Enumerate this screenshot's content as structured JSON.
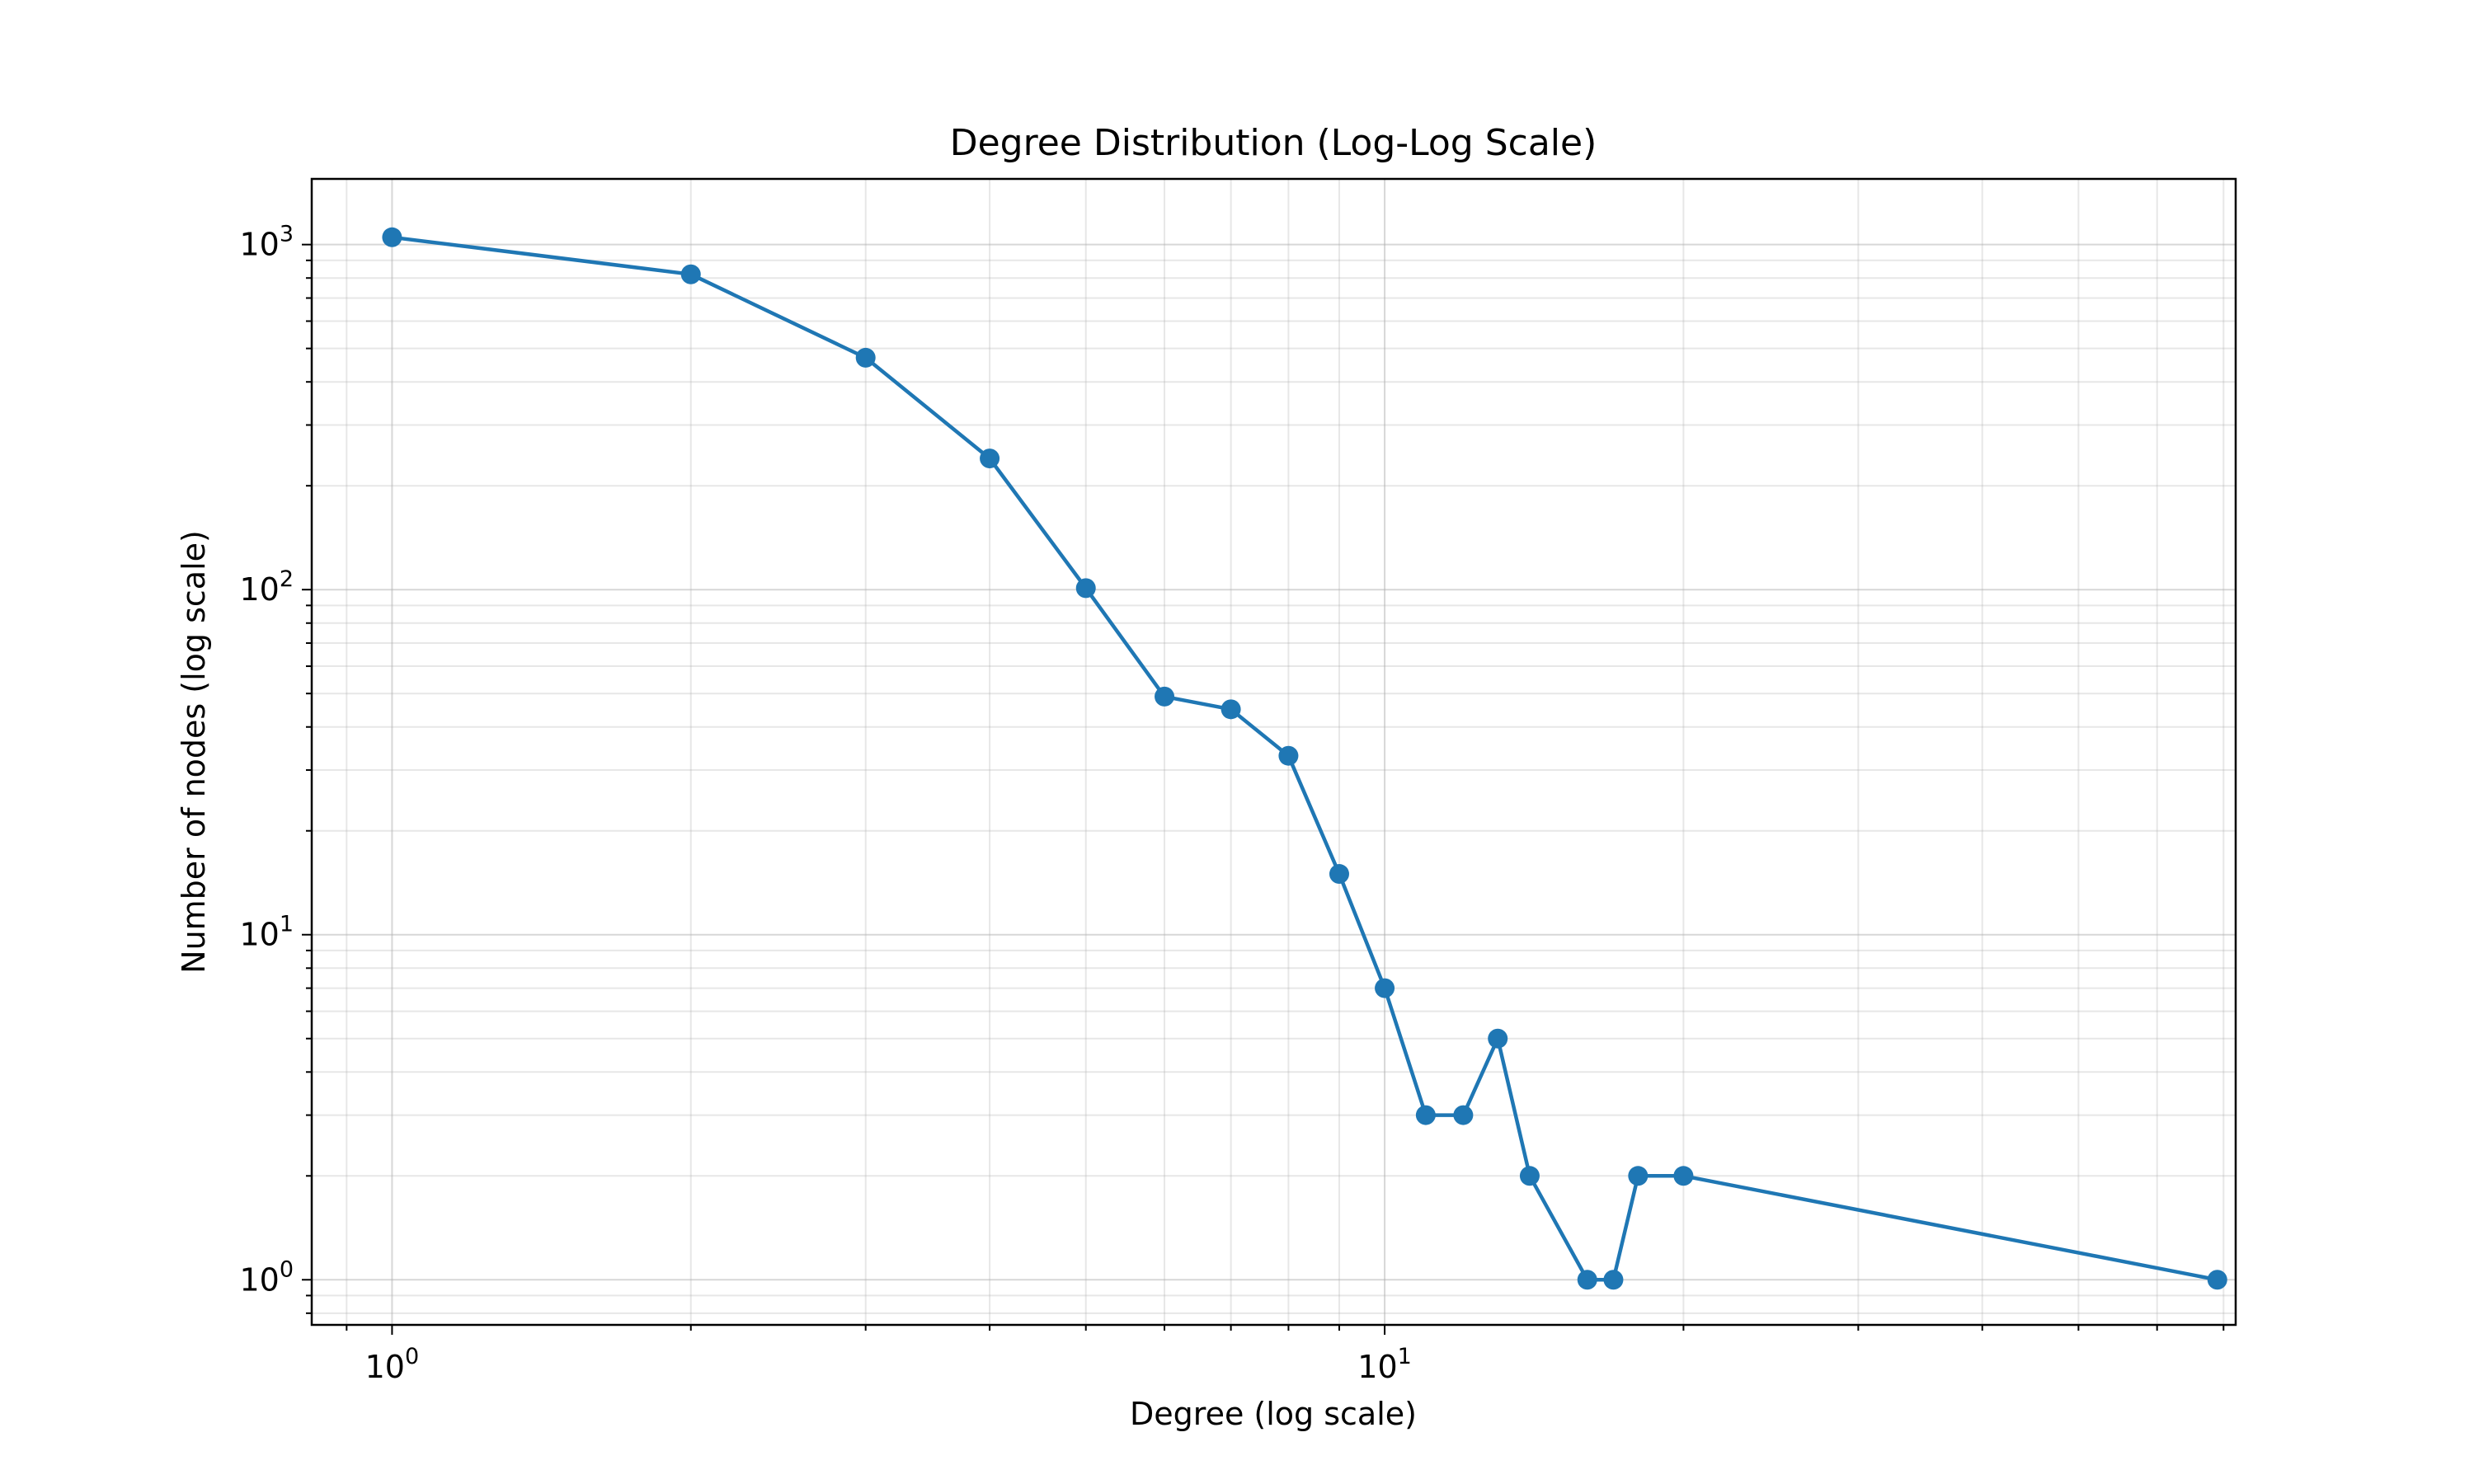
{
  "chart_data": {
    "type": "line",
    "title": "Degree Distribution (Log-Log Scale)",
    "xlabel": "Degree (log scale)",
    "ylabel": "Number of nodes (log scale)",
    "x_scale": "log",
    "y_scale": "log",
    "xlim": [
      0.83,
      72
    ],
    "ylim": [
      0.74,
      1550
    ],
    "grid": true,
    "grid_which": "both",
    "x_ticks": [
      {
        "value": 1,
        "base": "10",
        "exp": "0"
      },
      {
        "value": 10,
        "base": "10",
        "exp": "1"
      }
    ],
    "y_ticks": [
      {
        "value": 1,
        "base": "10",
        "exp": "0"
      },
      {
        "value": 10,
        "base": "10",
        "exp": "1"
      },
      {
        "value": 100,
        "base": "10",
        "exp": "2"
      },
      {
        "value": 1000,
        "base": "10",
        "exp": "3"
      }
    ],
    "series": [
      {
        "color": "#1f77b4",
        "marker": "circle",
        "x": [
          1,
          2,
          3,
          4,
          5,
          6,
          7,
          8,
          9,
          10,
          11,
          12,
          13,
          14,
          16,
          17,
          18,
          20,
          69
        ],
        "y": [
          1050,
          820,
          470,
          240,
          101,
          49,
          45,
          33,
          15,
          7,
          3,
          3,
          5,
          2,
          1,
          1,
          2,
          2,
          1
        ]
      }
    ]
  }
}
